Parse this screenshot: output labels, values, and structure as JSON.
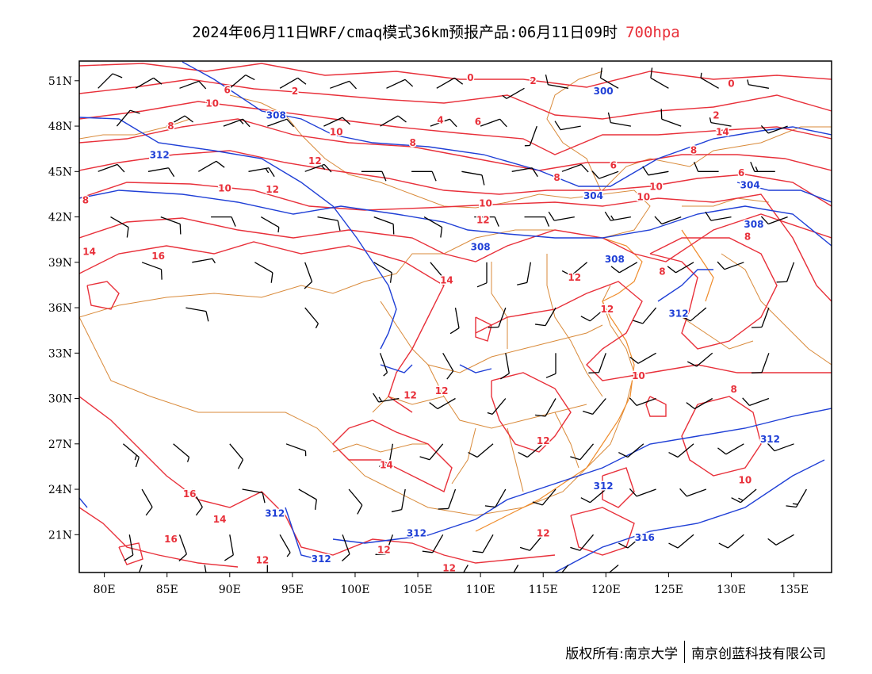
{
  "title": {
    "main": "2024年06月11日WRF/cmaq模式36km预报产品:06月11日09时",
    "level": "700hpa"
  },
  "colors": {
    "temperature": "#e8303a",
    "geopotential": "#1f3fd6",
    "boundary": "#d98a3a",
    "wind": "#000000"
  },
  "map": {
    "lon_range": [
      78,
      138
    ],
    "lat_range": [
      18.5,
      52.3
    ],
    "y_ticks": [
      "51N",
      "48N",
      "45N",
      "42N",
      "39N",
      "36N",
      "33N",
      "30N",
      "27N",
      "24N",
      "21N"
    ],
    "x_ticks": [
      "80E",
      "85E",
      "90E",
      "95E",
      "100E",
      "105E",
      "110E",
      "115E",
      "120E",
      "125E",
      "130E",
      "135E"
    ],
    "y_tick_values": [
      51,
      48,
      45,
      42,
      39,
      36,
      33,
      30,
      27,
      24,
      21
    ],
    "x_tick_values": [
      80,
      85,
      90,
      95,
      100,
      105,
      110,
      115,
      120,
      125,
      130,
      135
    ],
    "temp_labels": [
      {
        "text": "0",
        "lon": 109.2,
        "lat": 51.2
      },
      {
        "text": "2",
        "lon": 114.2,
        "lat": 51
      },
      {
        "text": "0",
        "lon": 130,
        "lat": 50.8
      },
      {
        "text": "2",
        "lon": 95.2,
        "lat": 50.3
      },
      {
        "text": "6",
        "lon": 89.8,
        "lat": 50.4
      },
      {
        "text": "10",
        "lon": 88.6,
        "lat": 49.5
      },
      {
        "text": "2",
        "lon": 128.8,
        "lat": 48.7
      },
      {
        "text": "4",
        "lon": 106.8,
        "lat": 48.4
      },
      {
        "text": "6",
        "lon": 109.8,
        "lat": 48.3
      },
      {
        "text": "8",
        "lon": 85.3,
        "lat": 48
      },
      {
        "text": "10",
        "lon": 98.5,
        "lat": 47.6
      },
      {
        "text": "8",
        "lon": 104.6,
        "lat": 46.9
      },
      {
        "text": "14",
        "lon": 129.3,
        "lat": 47.6
      },
      {
        "text": "8",
        "lon": 127,
        "lat": 46.4
      },
      {
        "text": "12",
        "lon": 96.8,
        "lat": 45.7
      },
      {
        "text": "6",
        "lon": 120.6,
        "lat": 45.4
      },
      {
        "text": "6",
        "lon": 130.8,
        "lat": 44.9
      },
      {
        "text": "8",
        "lon": 116.1,
        "lat": 44.6
      },
      {
        "text": "10",
        "lon": 89.6,
        "lat": 43.9
      },
      {
        "text": "12",
        "lon": 93.4,
        "lat": 43.8
      },
      {
        "text": "8",
        "lon": 78.5,
        "lat": 43.1
      },
      {
        "text": "10",
        "lon": 110.4,
        "lat": 42.9
      },
      {
        "text": "10",
        "lon": 123,
        "lat": 43.3
      },
      {
        "text": "12",
        "lon": 110.2,
        "lat": 41.8
      },
      {
        "text": "8",
        "lon": 131.3,
        "lat": 40.7
      },
      {
        "text": "14",
        "lon": 78.8,
        "lat": 39.7
      },
      {
        "text": "16",
        "lon": 84.3,
        "lat": 39.4
      },
      {
        "text": "8",
        "lon": 124.5,
        "lat": 38.4
      },
      {
        "text": "12",
        "lon": 117.5,
        "lat": 38
      },
      {
        "text": "14",
        "lon": 107.3,
        "lat": 37.8
      },
      {
        "text": "12",
        "lon": 120.1,
        "lat": 35.9
      },
      {
        "text": "10",
        "lon": 122.6,
        "lat": 31.5
      },
      {
        "text": "12",
        "lon": 104.4,
        "lat": 30.2
      },
      {
        "text": "12",
        "lon": 106.9,
        "lat": 30.5
      },
      {
        "text": "8",
        "lon": 130.2,
        "lat": 30.6
      },
      {
        "text": "12",
        "lon": 115,
        "lat": 27.2
      },
      {
        "text": "14",
        "lon": 102.5,
        "lat": 25.6
      },
      {
        "text": "16",
        "lon": 86.8,
        "lat": 23.7
      },
      {
        "text": "10",
        "lon": 131.1,
        "lat": 24.6
      },
      {
        "text": "14",
        "lon": 89.2,
        "lat": 22
      },
      {
        "text": "12",
        "lon": 115,
        "lat": 21.1
      },
      {
        "text": "16",
        "lon": 85.3,
        "lat": 20.7
      },
      {
        "text": "12",
        "lon": 92.6,
        "lat": 19.3
      },
      {
        "text": "12",
        "lon": 102.3,
        "lat": 20
      },
      {
        "text": "12",
        "lon": 107.5,
        "lat": 18.8
      },
      {
        "text": "10",
        "lon": 124,
        "lat": 44
      }
    ],
    "height_labels": [
      {
        "text": "300",
        "lon": 119.8,
        "lat": 50.3
      },
      {
        "text": "308",
        "lon": 93.7,
        "lat": 48.7
      },
      {
        "text": "312",
        "lon": 84.4,
        "lat": 46.1
      },
      {
        "text": "304",
        "lon": 119,
        "lat": 43.4
      },
      {
        "text": "304",
        "lon": 131.5,
        "lat": 44.1
      },
      {
        "text": "308",
        "lon": 131.8,
        "lat": 41.5
      },
      {
        "text": "308",
        "lon": 110,
        "lat": 40
      },
      {
        "text": "308",
        "lon": 120.7,
        "lat": 39.2
      },
      {
        "text": "312",
        "lon": 125.8,
        "lat": 35.6
      },
      {
        "text": "312",
        "lon": 133.1,
        "lat": 27.3
      },
      {
        "text": "312",
        "lon": 119.8,
        "lat": 24.2
      },
      {
        "text": "312",
        "lon": 93.6,
        "lat": 22.4
      },
      {
        "text": "312",
        "lon": 104.9,
        "lat": 21.1
      },
      {
        "text": "316",
        "lon": 123.1,
        "lat": 20.8
      },
      {
        "text": "312",
        "lon": 97.3,
        "lat": 19.4
      }
    ],
    "winds": [
      [
        79.5,
        50.5,
        45,
        10
      ],
      [
        82.5,
        50.5,
        60,
        10
      ],
      [
        86,
        50.5,
        70,
        10
      ],
      [
        90,
        50.5,
        50,
        10
      ],
      [
        94,
        50.5,
        60,
        10
      ],
      [
        98,
        50.5,
        70,
        10
      ],
      [
        102.5,
        50.5,
        65,
        10
      ],
      [
        106.5,
        50.5,
        60,
        10
      ],
      [
        113.5,
        50.5,
        240,
        5
      ],
      [
        117,
        50.5,
        280,
        10
      ],
      [
        121,
        50.5,
        300,
        10
      ],
      [
        125,
        50.5,
        300,
        10
      ],
      [
        129,
        50.5,
        300,
        5
      ],
      [
        133,
        50.5,
        280,
        5
      ],
      [
        81,
        48,
        40,
        10
      ],
      [
        85,
        48,
        60,
        10
      ],
      [
        89.5,
        48,
        70,
        15
      ],
      [
        93,
        48,
        70,
        10
      ],
      [
        97.5,
        48,
        65,
        10
      ],
      [
        102,
        48,
        60,
        10
      ],
      [
        106,
        48,
        70,
        10
      ],
      [
        110,
        48,
        70,
        10
      ],
      [
        114.5,
        48,
        200,
        5
      ],
      [
        118,
        48,
        260,
        10
      ],
      [
        122,
        48,
        280,
        10
      ],
      [
        126,
        48,
        290,
        10
      ],
      [
        130,
        48,
        280,
        5
      ],
      [
        134.5,
        48,
        250,
        10
      ],
      [
        79.5,
        45,
        70,
        10
      ],
      [
        83.5,
        45,
        80,
        10
      ],
      [
        87.5,
        45,
        60,
        10
      ],
      [
        91.5,
        45,
        80,
        15
      ],
      [
        96,
        45,
        70,
        15
      ],
      [
        100.5,
        45,
        90,
        10
      ],
      [
        104.5,
        45,
        90,
        10
      ],
      [
        108.5,
        45,
        100,
        10
      ],
      [
        112.5,
        45,
        80,
        10
      ],
      [
        116.5,
        45,
        70,
        10
      ],
      [
        121,
        45,
        250,
        10
      ],
      [
        125,
        45,
        260,
        10
      ],
      [
        129,
        45,
        270,
        10
      ],
      [
        133.5,
        45,
        270,
        15
      ],
      [
        80.5,
        42,
        120,
        10
      ],
      [
        84.5,
        42,
        110,
        10
      ],
      [
        88.5,
        42,
        90,
        10
      ],
      [
        92.5,
        42,
        120,
        5
      ],
      [
        97,
        42,
        100,
        10
      ],
      [
        101.5,
        42,
        110,
        10
      ],
      [
        105.5,
        42,
        120,
        10
      ],
      [
        109.5,
        42,
        90,
        10
      ],
      [
        113.5,
        42,
        90,
        10
      ],
      [
        117.5,
        42,
        260,
        10
      ],
      [
        122,
        42,
        260,
        15
      ],
      [
        126,
        42,
        250,
        10
      ],
      [
        130,
        42,
        260,
        10
      ],
      [
        134.5,
        42,
        250,
        10
      ],
      [
        83,
        39,
        110,
        10
      ],
      [
        87,
        39,
        80,
        5
      ],
      [
        92,
        39,
        120,
        10
      ],
      [
        96,
        39,
        160,
        10
      ],
      [
        101.5,
        39,
        120,
        10
      ],
      [
        106,
        39,
        140,
        5
      ],
      [
        110.5,
        39,
        180,
        10
      ],
      [
        114,
        39,
        190,
        10
      ],
      [
        118.5,
        39,
        230,
        10
      ],
      [
        122.5,
        39,
        240,
        10
      ],
      [
        127,
        39,
        240,
        10
      ],
      [
        131,
        39,
        250,
        10
      ],
      [
        135,
        39,
        200,
        10
      ],
      [
        86.5,
        36,
        100,
        10
      ],
      [
        96,
        36,
        140,
        5
      ],
      [
        108,
        36,
        170,
        10
      ],
      [
        112,
        36,
        200,
        10
      ],
      [
        116,
        36,
        210,
        10
      ],
      [
        120,
        36,
        230,
        10
      ],
      [
        124,
        36,
        220,
        10
      ],
      [
        128,
        36,
        230,
        10
      ],
      [
        133,
        36,
        200,
        10
      ],
      [
        102,
        33,
        160,
        5
      ],
      [
        107,
        33,
        150,
        10
      ],
      [
        112,
        33,
        170,
        10
      ],
      [
        116,
        33,
        180,
        10
      ],
      [
        120,
        33,
        200,
        10
      ],
      [
        124,
        33,
        240,
        10
      ],
      [
        128.5,
        33,
        230,
        10
      ],
      [
        133,
        33,
        200,
        10
      ],
      [
        103.5,
        30,
        260,
        15
      ],
      [
        108,
        30,
        240,
        10
      ],
      [
        112,
        30,
        220,
        5
      ],
      [
        116,
        30,
        210,
        10
      ],
      [
        120,
        30,
        220,
        10
      ],
      [
        124,
        30,
        250,
        10
      ],
      [
        128.5,
        30,
        240,
        10
      ],
      [
        133,
        30,
        250,
        10
      ],
      [
        81.5,
        27,
        130,
        15
      ],
      [
        85.5,
        27,
        130,
        5
      ],
      [
        90,
        27,
        140,
        10
      ],
      [
        94.5,
        27,
        110,
        5
      ],
      [
        103,
        27,
        190,
        10
      ],
      [
        107,
        27,
        220,
        10
      ],
      [
        111,
        27,
        230,
        10
      ],
      [
        115,
        27,
        230,
        10
      ],
      [
        119,
        27,
        220,
        10
      ],
      [
        123,
        27,
        230,
        10
      ],
      [
        127,
        27,
        230,
        10
      ],
      [
        131,
        27,
        240,
        10
      ],
      [
        135,
        27,
        250,
        10
      ],
      [
        83,
        24,
        150,
        10
      ],
      [
        87,
        24,
        150,
        10
      ],
      [
        91,
        24,
        100,
        10
      ],
      [
        95.5,
        24,
        120,
        10
      ],
      [
        99.5,
        24,
        140,
        10
      ],
      [
        104,
        24,
        190,
        10
      ],
      [
        108,
        24,
        200,
        10
      ],
      [
        112,
        24,
        210,
        10
      ],
      [
        116,
        24,
        220,
        10
      ],
      [
        120,
        24,
        230,
        10
      ],
      [
        124,
        24,
        250,
        10
      ],
      [
        128,
        24,
        250,
        10
      ],
      [
        132,
        24,
        230,
        15
      ],
      [
        136,
        24,
        210,
        15
      ],
      [
        82,
        21,
        170,
        10
      ],
      [
        86,
        21,
        160,
        10
      ],
      [
        90,
        21,
        170,
        10
      ],
      [
        94,
        21,
        150,
        5
      ],
      [
        99,
        21,
        160,
        10
      ],
      [
        103,
        21,
        200,
        10
      ],
      [
        107,
        21,
        210,
        10
      ],
      [
        111,
        21,
        210,
        10
      ],
      [
        115,
        21,
        220,
        10
      ],
      [
        119,
        21,
        220,
        10
      ],
      [
        123,
        21,
        230,
        10
      ],
      [
        127,
        21,
        230,
        10
      ],
      [
        131,
        21,
        230,
        10
      ],
      [
        135,
        21,
        240,
        10
      ],
      [
        83,
        19,
        200,
        15
      ],
      [
        88,
        19,
        170,
        10
      ],
      [
        93,
        19,
        180,
        10
      ],
      [
        109,
        19,
        210,
        10
      ],
      [
        113,
        19,
        210,
        10
      ],
      [
        117,
        19,
        220,
        10
      ],
      [
        121,
        19,
        230,
        10
      ]
    ]
  },
  "footer": {
    "left": "版权所有:南京大学",
    "right": "南京创蓝科技有限公司"
  }
}
